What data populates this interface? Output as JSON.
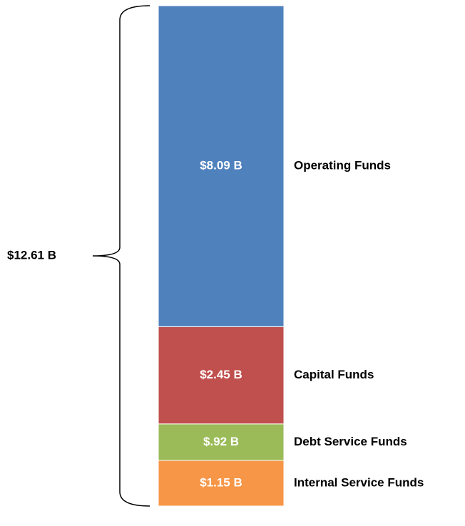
{
  "chart_data": {
    "type": "bar",
    "stacked": true,
    "total_label": "$12.61 B",
    "series": [
      {
        "name": "Operating Funds",
        "color": "#4f81bd",
        "values": [
          8.09
        ],
        "value_labels": [
          "$8.09 B"
        ]
      },
      {
        "name": "Capital Funds",
        "color": "#c0504d",
        "values": [
          2.45
        ],
        "value_labels": [
          "$2.45 B"
        ]
      },
      {
        "name": "Debt Service Funds",
        "color": "#9bbb59",
        "values": [
          0.92
        ],
        "value_labels": [
          "$.92 B"
        ]
      },
      {
        "name": "Internal Service Funds",
        "color": "#f79646",
        "values": [
          1.15
        ],
        "value_labels": [
          "$1.15 B"
        ]
      }
    ]
  }
}
